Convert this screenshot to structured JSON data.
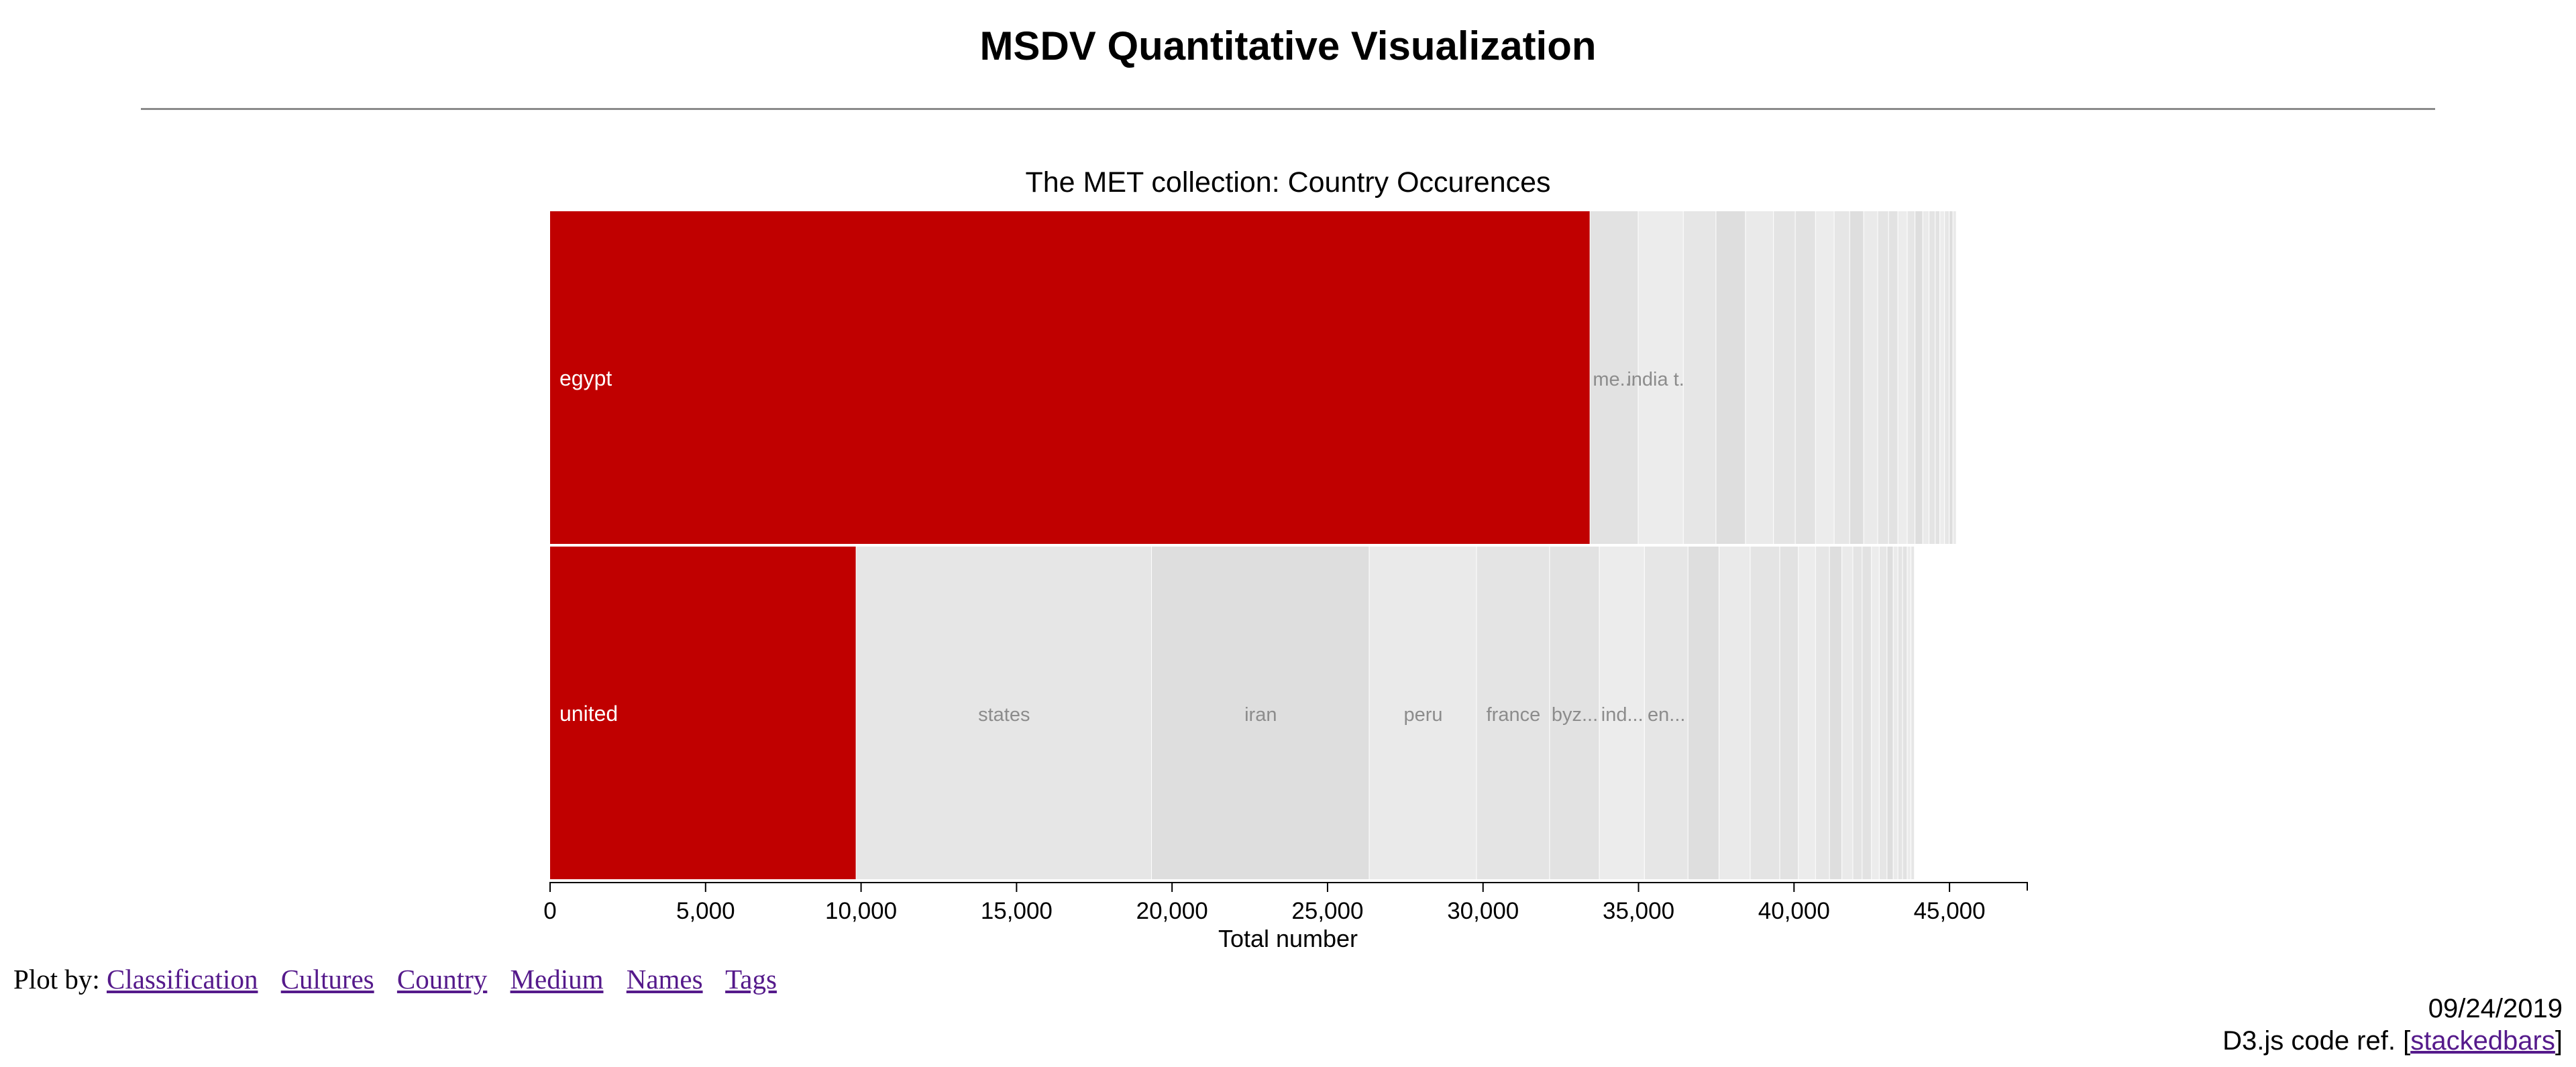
{
  "page": {
    "title": "MSDV Quantitative Visualization"
  },
  "chart_data": {
    "type": "bar",
    "stacked": true,
    "orientation": "horizontal",
    "title": "The MET collection: Country Occurences",
    "xlabel": "Total number",
    "ylabel": "",
    "xlim": [
      0,
      47500
    ],
    "x_ticks": [
      0,
      5000,
      10000,
      15000,
      20000,
      25000,
      30000,
      35000,
      40000,
      45000
    ],
    "x_tick_labels": [
      "0",
      "5,000",
      "10,000",
      "15,000",
      "20,000",
      "25,000",
      "30,000",
      "35,000",
      "40,000",
      "45,000"
    ],
    "grid": false,
    "highlight_color": "#c00000",
    "rows": [
      {
        "segments": [
          {
            "label": "egypt",
            "value": 33450,
            "highlight": true
          },
          {
            "label": "me...",
            "value": 1550
          },
          {
            "label": "india t...",
            "value": 1450
          },
          {
            "label": "",
            "value": 1050
          },
          {
            "label": "",
            "value": 950
          },
          {
            "label": "",
            "value": 900
          },
          {
            "label": "",
            "value": 700
          },
          {
            "label": "",
            "value": 650
          },
          {
            "label": "",
            "value": 600
          },
          {
            "label": "",
            "value": 500
          },
          {
            "label": "",
            "value": 450
          },
          {
            "label": "",
            "value": 450
          },
          {
            "label": "",
            "value": 350
          },
          {
            "label": "",
            "value": 300
          },
          {
            "label": "",
            "value": 300
          },
          {
            "label": "",
            "value": 250
          },
          {
            "label": "",
            "value": 250
          },
          {
            "label": "",
            "value": 200
          },
          {
            "label": "",
            "value": 200
          },
          {
            "label": "",
            "value": 150
          },
          {
            "label": "",
            "value": 150
          },
          {
            "label": "",
            "value": 150
          },
          {
            "label": "",
            "value": 120
          },
          {
            "label": "",
            "value": 110
          }
        ]
      },
      {
        "segments": [
          {
            "label": "united",
            "value": 9850,
            "highlight": true
          },
          {
            "label": "states",
            "value": 9500
          },
          {
            "label": "iran",
            "value": 7000
          },
          {
            "label": "peru",
            "value": 3450
          },
          {
            "label": "france",
            "value": 2350
          },
          {
            "label": "byz...",
            "value": 1600
          },
          {
            "label": "ind...",
            "value": 1450
          },
          {
            "label": "en...",
            "value": 1400
          },
          {
            "label": "",
            "value": 1000
          },
          {
            "label": "",
            "value": 1000
          },
          {
            "label": "",
            "value": 950
          },
          {
            "label": "",
            "value": 600
          },
          {
            "label": "",
            "value": 550
          },
          {
            "label": "",
            "value": 450
          },
          {
            "label": "",
            "value": 400
          },
          {
            "label": "",
            "value": 350
          },
          {
            "label": "",
            "value": 300
          },
          {
            "label": "",
            "value": 300
          },
          {
            "label": "",
            "value": 250
          },
          {
            "label": "",
            "value": 250
          },
          {
            "label": "",
            "value": 200
          },
          {
            "label": "",
            "value": 150
          },
          {
            "label": "",
            "value": 150
          },
          {
            "label": "",
            "value": 150
          },
          {
            "label": "",
            "value": 120
          },
          {
            "label": "",
            "value": 110
          }
        ]
      }
    ]
  },
  "plot_by": {
    "label": "Plot by:",
    "links": [
      "Classification",
      "Cultures",
      "Country",
      "Medium",
      "Names",
      "Tags"
    ]
  },
  "footer": {
    "date": "09/24/2019",
    "ref_prefix": "D3.js code ref. [",
    "ref_link": "stackedbars",
    "ref_suffix": "]"
  }
}
